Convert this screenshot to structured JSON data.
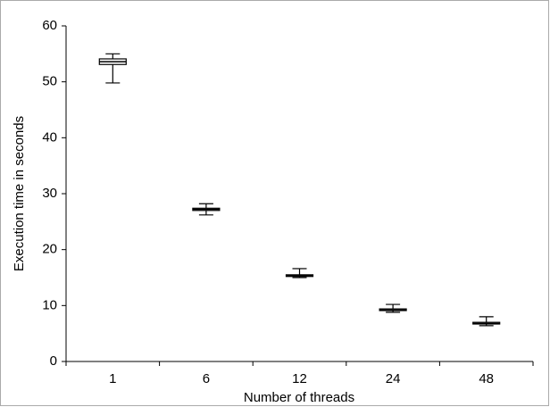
{
  "chart_data": {
    "type": "box",
    "x_label": "Number of threads",
    "y_label": "Execution time in seconds",
    "categories": [
      "1",
      "6",
      "12",
      "24",
      "48"
    ],
    "min": [
      49.8,
      26.2,
      15.0,
      8.8,
      6.4
    ],
    "q1": [
      53.1,
      27.0,
      15.2,
      9.1,
      6.7
    ],
    "median": [
      53.6,
      27.2,
      15.3,
      9.2,
      6.8
    ],
    "q3": [
      54.1,
      27.4,
      15.5,
      9.4,
      7.0
    ],
    "max": [
      55.0,
      28.2,
      16.6,
      10.2,
      8.0
    ],
    "color": "#ffffff",
    "ylim": [
      0,
      60
    ],
    "yticks": [
      0,
      10,
      20,
      30,
      40,
      50,
      60
    ]
  }
}
